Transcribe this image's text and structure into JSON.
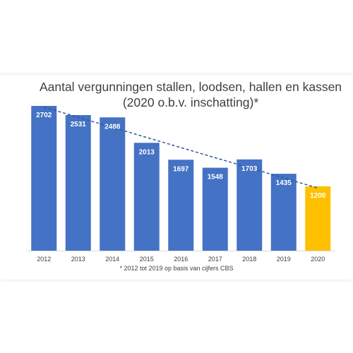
{
  "chart_data": {
    "type": "bar",
    "title_line1": "Aantal vergunningen stallen, loodsen, hallen en kassen",
    "title_line2": "(2020 o.b.v. inschatting)*",
    "categories": [
      "2012",
      "2013",
      "2014",
      "2015",
      "2016",
      "2017",
      "2018",
      "2019",
      "2020"
    ],
    "values": [
      2702,
      2531,
      2488,
      2013,
      1697,
      1548,
      1703,
      1435,
      1200
    ],
    "data_labels": [
      "2702",
      "2531",
      "2488",
      "2013",
      "1697",
      "1548",
      "1703",
      "1435",
      "1200"
    ],
    "estimated_from_index": 8,
    "trendline": "linear, dashed",
    "footnote": "* 2012 tot 2019 op basis van cijfers CBS",
    "ylim": [
      0,
      2900
    ],
    "grid": false,
    "legend": "none",
    "colors": {
      "bar": "#4472c4",
      "estimate_bar": "#ffc000",
      "trend": "#2f5597",
      "label_text": "#ffffff",
      "axis_text": "#404040"
    }
  }
}
